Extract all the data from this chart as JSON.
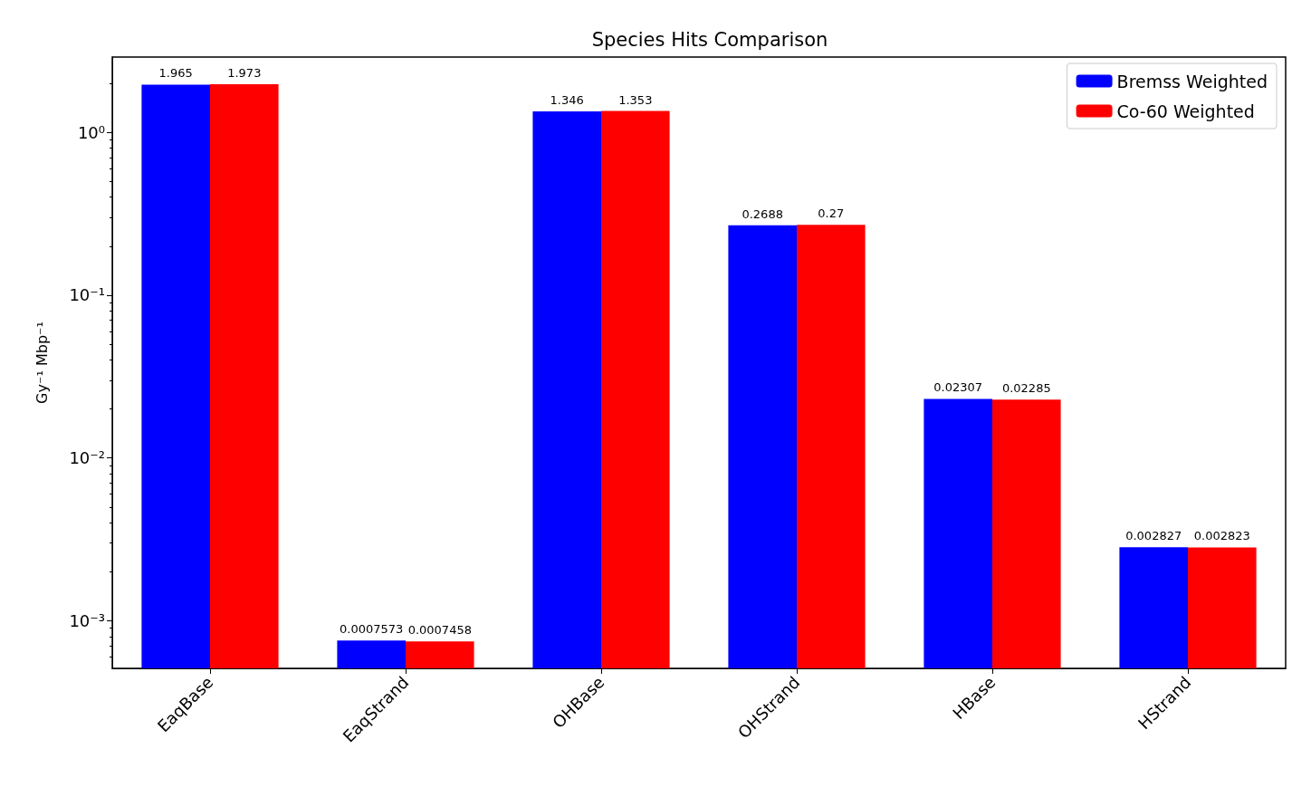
{
  "chart_data": {
    "type": "bar",
    "title": "Species Hits Comparison",
    "ylabel": "Gy⁻¹ Mbp⁻¹",
    "categories": [
      "EaqBase",
      "EaqStrand",
      "OHBase",
      "OHStrand",
      "HBase",
      "HStrand"
    ],
    "series": [
      {
        "name": "Bremss Weighted",
        "color": "#0000ff",
        "values": [
          1.965,
          0.0007573,
          1.346,
          0.2688,
          0.02307,
          0.002827
        ]
      },
      {
        "name": "Co-60 Weighted",
        "color": "#ff0000",
        "values": [
          1.973,
          0.0007458,
          1.353,
          0.27,
          0.02285,
          0.002823
        ]
      }
    ],
    "log": "y",
    "ylim": [
      0.00051,
      2.9
    ],
    "yticks": [
      {
        "value": 0.001,
        "label": "10⁻³"
      },
      {
        "value": 0.01,
        "label": "10⁻²"
      },
      {
        "value": 0.1,
        "label": "10⁻¹"
      },
      {
        "value": 1,
        "label": "10⁰"
      }
    ],
    "data_labels": true,
    "legend": "top right",
    "grid": false
  }
}
